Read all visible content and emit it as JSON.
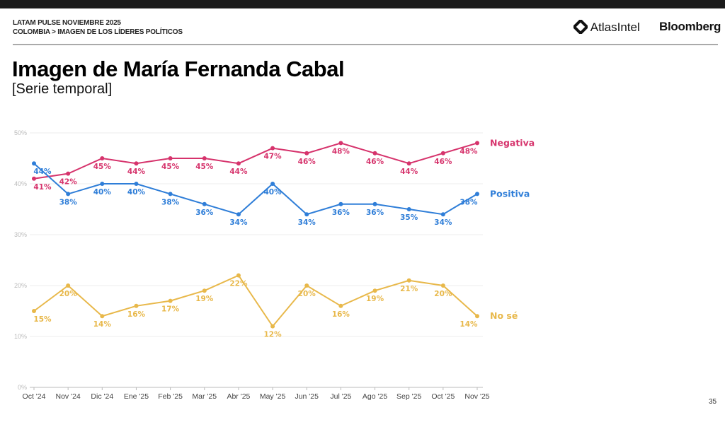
{
  "header": {
    "kicker": "LATAM PULSE NOVIEMBRE 2025",
    "breadcrumb": "COLOMBIA > IMAGEN DE LOS LÍDERES POLÍTICOS",
    "logos": [
      "AtlasIntel",
      "Bloomberg"
    ]
  },
  "page_number": "35",
  "chart_data": {
    "type": "line",
    "title": "Imagen de María Fernanda Cabal",
    "subtitle": "[Serie temporal]",
    "categories": [
      "Oct '24",
      "Nov '24",
      "Dic '24",
      "Ene '25",
      "Feb '25",
      "Mar '25",
      "Abr '25",
      "May '25",
      "Jun '25",
      "Jul '25",
      "Ago '25",
      "Sep '25",
      "Oct '25",
      "Nov '25"
    ],
    "yticks": [
      "0%",
      "10%",
      "20%",
      "30%",
      "40%",
      "50%"
    ],
    "ylim": [
      0,
      50
    ],
    "grid": true,
    "legend": "right, inline at line ends",
    "series": [
      {
        "name": "Negativa",
        "color": "#d6336c",
        "values": [
          41,
          42,
          45,
          44,
          45,
          45,
          44,
          47,
          46,
          48,
          46,
          44,
          46,
          48
        ]
      },
      {
        "name": "Positiva",
        "color": "#2f7ed8",
        "values": [
          44,
          38,
          40,
          40,
          38,
          36,
          34,
          40,
          34,
          36,
          36,
          35,
          34,
          38
        ]
      },
      {
        "name": "No sé",
        "color": "#e8b84a",
        "values": [
          15,
          20,
          14,
          16,
          17,
          19,
          22,
          12,
          20,
          16,
          19,
          21,
          20,
          14
        ]
      }
    ]
  }
}
